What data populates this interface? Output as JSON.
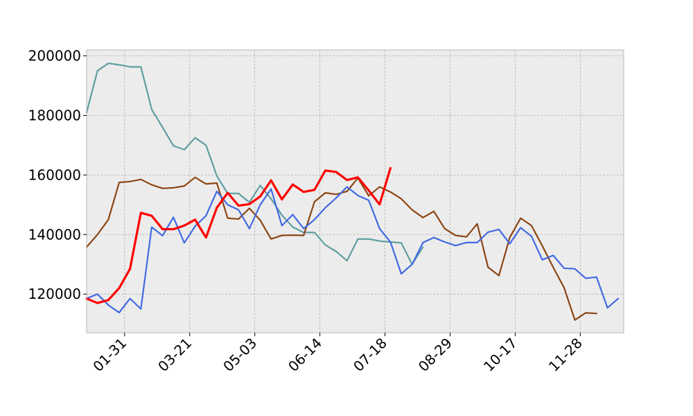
{
  "chart_data": {
    "type": "line",
    "title": "",
    "xlabel": "",
    "ylabel": "",
    "grid": true,
    "background": "#ececec",
    "x_domain": [
      0,
      49.5
    ],
    "ylim": [
      107000,
      202000
    ],
    "y_ticks": [
      120000,
      140000,
      160000,
      180000,
      200000
    ],
    "y_tick_labels": [
      "120000",
      "140000",
      "160000",
      "180000",
      "200000"
    ],
    "x_ticks": [
      {
        "x": 3.5,
        "label": "01-31"
      },
      {
        "x": 9.5,
        "label": "03-21"
      },
      {
        "x": 15.5,
        "label": "05-03"
      },
      {
        "x": 21.5,
        "label": "06-14"
      },
      {
        "x": 27.5,
        "label": "07-18"
      },
      {
        "x": 33.5,
        "label": "08-29"
      },
      {
        "x": 39.5,
        "label": "10-17"
      },
      {
        "x": 45.5,
        "label": "11-28"
      }
    ],
    "series": [
      {
        "color": "#5f9ea0",
        "width": 2.2,
        "values": [
          181000,
          195000,
          197500,
          197000,
          196300,
          196300,
          182000,
          176000,
          169800,
          168500,
          172500,
          170000,
          159700,
          153800,
          153800,
          150800,
          156500,
          152000,
          146500,
          142500,
          140700,
          140700,
          136500,
          134300,
          131200,
          138500,
          138500,
          137800,
          137500,
          137200,
          130000,
          135800
        ]
      },
      {
        "color": "#8b4513",
        "width": 2.2,
        "values": [
          135800,
          140000,
          145000,
          157500,
          157800,
          158500,
          156700,
          155500,
          155700,
          156300,
          159200,
          157000,
          157300,
          145500,
          145200,
          148800,
          144800,
          138500,
          139700,
          139800,
          139700,
          151000,
          154000,
          153500,
          154500,
          159000,
          153000,
          156000,
          154300,
          152000,
          148300,
          145700,
          147800,
          142000,
          139700,
          139200,
          143600,
          129000,
          126200,
          139000,
          145500,
          143000,
          136200,
          129000,
          122200,
          111300,
          113700,
          113500
        ]
      },
      {
        "color": "#4169e1",
        "width": 2.2,
        "values": [
          118500,
          120000,
          116300,
          113800,
          118500,
          115000,
          142500,
          139600,
          145800,
          137200,
          142800,
          146300,
          154500,
          150000,
          148300,
          142000,
          150000,
          155300,
          143000,
          146700,
          142000,
          145000,
          149000,
          152300,
          156000,
          153100,
          151500,
          142000,
          137500,
          126800,
          130000,
          137300,
          139000,
          137500,
          136300,
          137300,
          137300,
          140800,
          141700,
          136900,
          142300,
          139400,
          131500,
          133000,
          128700,
          128500,
          125300,
          125700,
          115400,
          118500
        ]
      },
      {
        "color": "#ff0000",
        "width": 3.2,
        "values": [
          118500,
          117000,
          118000,
          122000,
          128500,
          147300,
          146300,
          141800,
          141800,
          143000,
          145000,
          139000,
          149000,
          154000,
          149700,
          150200,
          152800,
          158200,
          151800,
          156800,
          154300,
          155000,
          161500,
          161000,
          158300,
          159200,
          154800,
          150100,
          162300
        ]
      }
    ]
  }
}
